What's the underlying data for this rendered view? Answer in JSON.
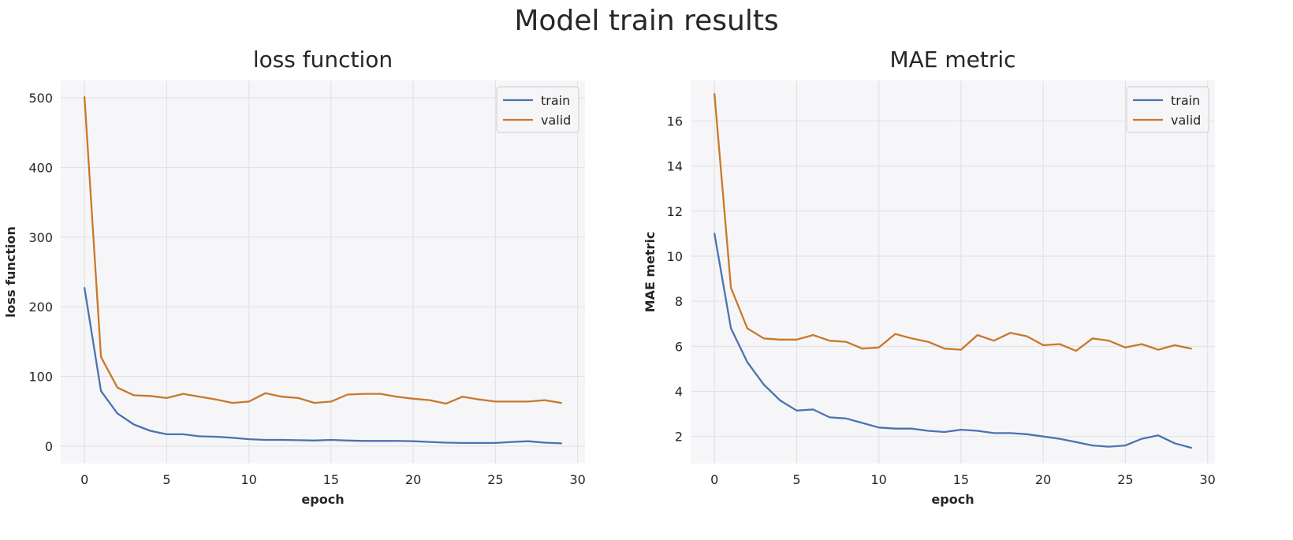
{
  "figure": {
    "title": "Model train results"
  },
  "colors": {
    "train": "#4c72b0",
    "valid": "#c9782a",
    "plot_bg": "#f6f6f8",
    "grid": "#e3e3e6"
  },
  "chart_data": [
    {
      "type": "line",
      "title": "loss function",
      "xlabel": "epoch",
      "ylabel": "loss function",
      "xlim": [
        -1.45,
        30.45
      ],
      "ylim": [
        -25,
        525
      ],
      "xticks": [
        0,
        5,
        10,
        15,
        20,
        25,
        30
      ],
      "yticks": [
        0,
        100,
        200,
        300,
        400,
        500
      ],
      "grid": true,
      "legend": {
        "position": "top-right"
      },
      "x": [
        0,
        1,
        2,
        3,
        4,
        5,
        6,
        7,
        8,
        9,
        10,
        11,
        12,
        13,
        14,
        15,
        16,
        17,
        18,
        19,
        20,
        21,
        22,
        23,
        24,
        25,
        26,
        27,
        28,
        29
      ],
      "series": [
        {
          "name": "train",
          "color": "#4c72b0",
          "values": [
            227,
            79,
            47,
            31,
            22,
            17,
            17,
            14,
            13.5,
            12,
            10,
            9,
            9,
            8.5,
            8,
            9,
            8,
            7.5,
            7.5,
            7.5,
            7,
            6,
            5,
            4.5,
            4.5,
            4.5,
            6,
            7,
            5,
            4
          ]
        },
        {
          "name": "valid",
          "color": "#c9782a",
          "values": [
            501,
            128,
            84,
            73,
            72,
            69,
            75,
            71,
            67,
            62,
            64,
            76,
            71,
            69,
            62,
            64,
            74,
            75,
            75,
            71,
            68,
            66,
            61,
            71,
            67,
            64,
            64,
            64,
            66,
            62
          ]
        }
      ]
    },
    {
      "type": "line",
      "title": "MAE metric",
      "xlabel": "epoch",
      "ylabel": "MAE metric",
      "xlim": [
        -1.45,
        30.45
      ],
      "ylim": [
        0.8,
        17.8
      ],
      "xticks": [
        0,
        5,
        10,
        15,
        20,
        25,
        30
      ],
      "yticks": [
        2,
        4,
        6,
        8,
        10,
        12,
        14,
        16
      ],
      "grid": true,
      "legend": {
        "position": "top-right"
      },
      "x": [
        0,
        1,
        2,
        3,
        4,
        5,
        6,
        7,
        8,
        9,
        10,
        11,
        12,
        13,
        14,
        15,
        16,
        17,
        18,
        19,
        20,
        21,
        22,
        23,
        24,
        25,
        26,
        27,
        28,
        29
      ],
      "series": [
        {
          "name": "train",
          "color": "#4c72b0",
          "values": [
            11.0,
            6.8,
            5.3,
            4.3,
            3.6,
            3.15,
            3.2,
            2.85,
            2.8,
            2.6,
            2.4,
            2.35,
            2.35,
            2.25,
            2.2,
            2.3,
            2.25,
            2.15,
            2.15,
            2.1,
            2.0,
            1.9,
            1.75,
            1.6,
            1.55,
            1.6,
            1.9,
            2.05,
            1.7,
            1.5
          ]
        },
        {
          "name": "valid",
          "color": "#c9782a",
          "values": [
            17.2,
            8.6,
            6.8,
            6.35,
            6.3,
            6.3,
            6.5,
            6.25,
            6.2,
            5.9,
            5.95,
            6.55,
            6.35,
            6.2,
            5.9,
            5.85,
            6.5,
            6.25,
            6.6,
            6.45,
            6.05,
            6.1,
            5.8,
            6.35,
            6.25,
            5.95,
            6.1,
            5.85,
            6.05,
            5.9
          ]
        }
      ]
    }
  ]
}
